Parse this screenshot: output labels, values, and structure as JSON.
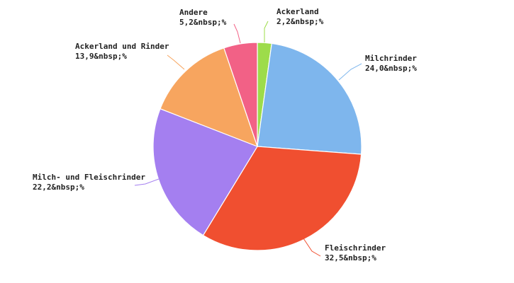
{
  "chart_data": {
    "type": "pie",
    "title": "",
    "slices": [
      {
        "name": "Ackerland",
        "value": 2.2,
        "label": "2,2&nbsp;%",
        "color": "#9ddc4a"
      },
      {
        "name": "Milchrinder",
        "value": 24.0,
        "label": "24,0&nbsp;%",
        "color": "#7eb6ed"
      },
      {
        "name": "Fleischrinder",
        "value": 32.5,
        "label": "32,5&nbsp;%",
        "color": "#f04f30"
      },
      {
        "name": "Milch- und Fleischrinder",
        "value": 22.2,
        "label": "22,2&nbsp;%",
        "color": "#a47ff0"
      },
      {
        "name": "Ackerland und Rinder",
        "value": 13.9,
        "label": "13,9&nbsp;%",
        "color": "#f7a55f"
      },
      {
        "name": "Andere",
        "value": 5.2,
        "label": "5,2&nbsp;%",
        "color": "#f26186"
      }
    ]
  }
}
